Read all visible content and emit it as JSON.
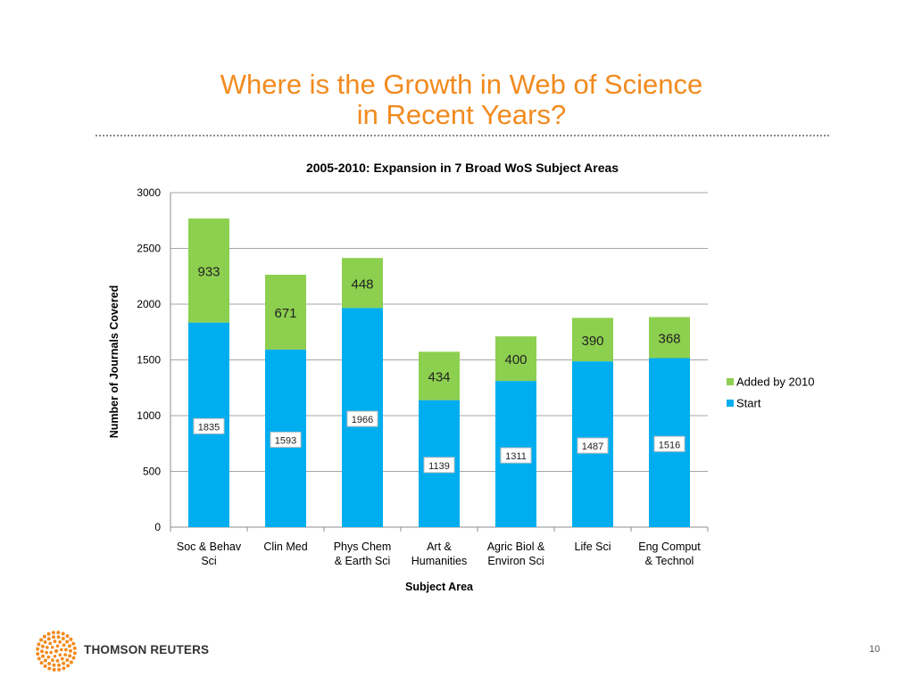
{
  "slide": {
    "title_line1": "Where is the Growth in Web of Science",
    "title_line2": "in Recent Years?",
    "page_number": "10"
  },
  "footer": {
    "brand": "THOMSON REUTERS",
    "logo_icon": "thomson-reuters-dot-logo-icon",
    "logo_color": "#f28a1e"
  },
  "chart_data": {
    "type": "bar",
    "stacked": true,
    "title": "2005-2010: Expansion in 7 Broad WoS Subject Areas",
    "xlabel": "Subject Area",
    "ylabel": "Number of Journals Covered",
    "ylim": [
      0,
      3000
    ],
    "yticks": [
      0,
      500,
      1000,
      1500,
      2000,
      2500,
      3000
    ],
    "grid": true,
    "legend_position": "right",
    "categories": [
      [
        "Soc & Behav",
        "Sci"
      ],
      [
        "Clin Med"
      ],
      [
        "Phys Chem",
        "& Earth Sci"
      ],
      [
        "Art &",
        "Humanities"
      ],
      [
        "Agric Biol &",
        "Environ Sci"
      ],
      [
        "Life Sci"
      ],
      [
        "Eng Comput",
        "& Technol"
      ]
    ],
    "series": [
      {
        "name": "Start",
        "color": "#00aeef",
        "values": [
          1835,
          1593,
          1966,
          1139,
          1311,
          1487,
          1516
        ]
      },
      {
        "name": "Added by 2010",
        "color": "#8dcf4f",
        "values": [
          933,
          671,
          448,
          434,
          400,
          390,
          368
        ]
      }
    ],
    "legend_order": [
      "Added by 2010",
      "Start"
    ]
  }
}
